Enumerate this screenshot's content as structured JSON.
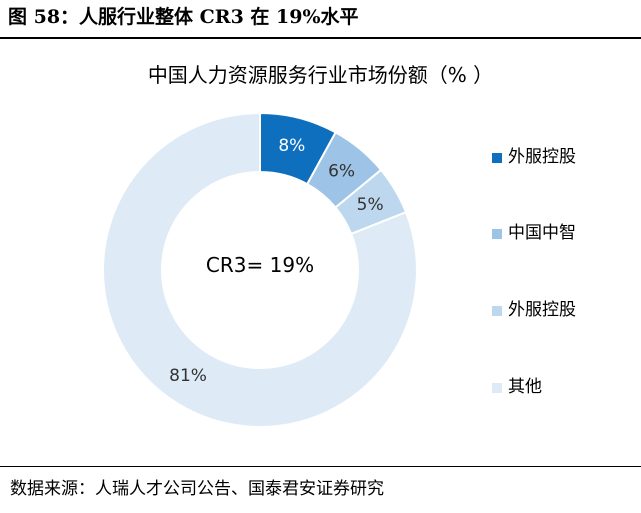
{
  "figure": {
    "title": "图 58：人服行业整体 CR3 在 19%水平",
    "source": "数据来源：人瑞人才公司公告、国泰君安证券研究"
  },
  "chart_data": {
    "type": "pie",
    "variant": "donut",
    "title": "中国人力资源服务行业市场份额（% ）",
    "center_label": "CR3= 19%",
    "categories": [
      "外服控股",
      "中国中智",
      "外服控股",
      "其他"
    ],
    "values": [
      8,
      6,
      5,
      81
    ],
    "value_labels": [
      "8%",
      "6%",
      "5%",
      "81%"
    ],
    "colors": [
      "#0E6FBF",
      "#9DC3E6",
      "#BDD7EE",
      "#DEEBF7"
    ],
    "label_colors": [
      "#ffffff",
      "#333333",
      "#333333",
      "#333333"
    ],
    "legend_position": "right"
  }
}
